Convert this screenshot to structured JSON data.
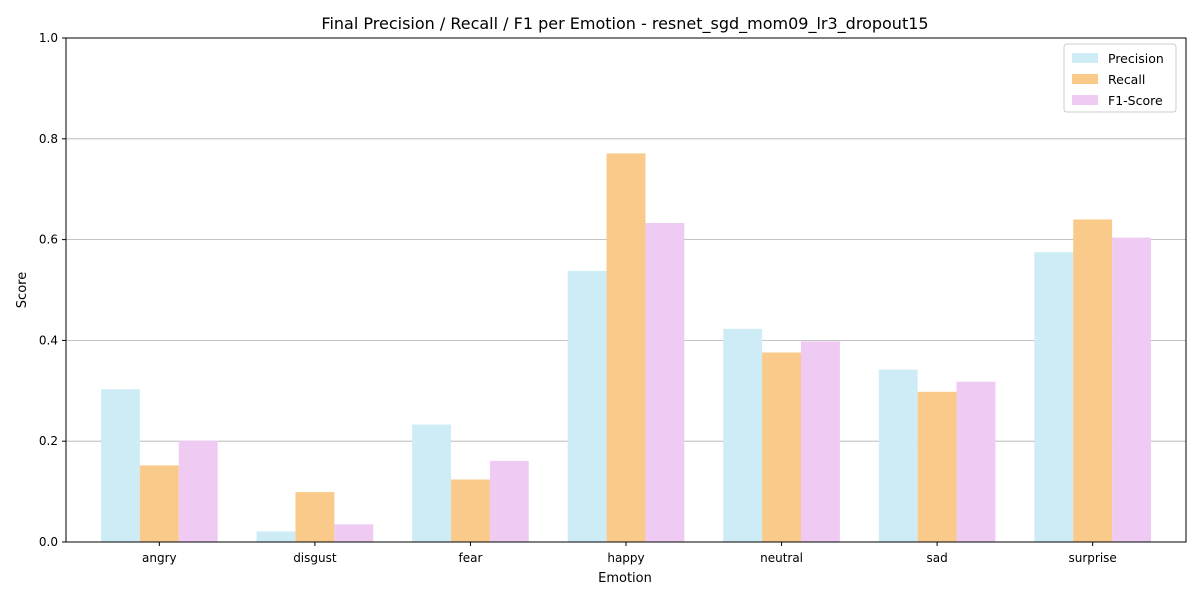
{
  "chart_data": {
    "type": "bar",
    "title": "Final Precision / Recall / F1 per Emotion - resnet_sgd_mom09_lr3_dropout15",
    "xlabel": "Emotion",
    "ylabel": "Score",
    "ylim": [
      0,
      1.0
    ],
    "yticks": [
      "0.0",
      "0.2",
      "0.4",
      "0.6",
      "0.8",
      "1.0"
    ],
    "grid": "y",
    "legend_position": "top-right",
    "categories": [
      "angry",
      "disgust",
      "fear",
      "happy",
      "neutral",
      "sad",
      "surprise"
    ],
    "series": [
      {
        "name": "Precision",
        "color": "#cdecf6",
        "values": [
          0.303,
          0.021,
          0.233,
          0.538,
          0.423,
          0.342,
          0.575
        ]
      },
      {
        "name": "Recall",
        "color": "#f9ca89",
        "values": [
          0.152,
          0.099,
          0.124,
          0.771,
          0.376,
          0.298,
          0.64
        ]
      },
      {
        "name": "F1-Score",
        "color": "#efcbf3",
        "values": [
          0.201,
          0.035,
          0.161,
          0.633,
          0.398,
          0.318,
          0.604
        ]
      }
    ]
  }
}
